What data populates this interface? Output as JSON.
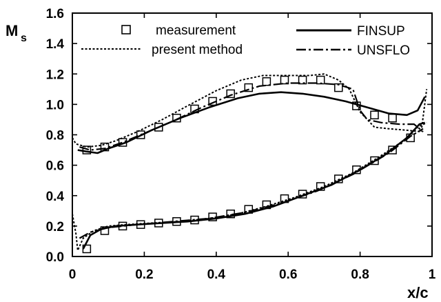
{
  "chart_data": {
    "type": "line",
    "title": "",
    "xlabel": "x/c",
    "ylabel_main": "M",
    "ylabel_sub": "s",
    "xlim": [
      0,
      1
    ],
    "ylim": [
      0,
      1.6
    ],
    "x_ticks": [
      0,
      0.2,
      0.4,
      0.6,
      0.8,
      1
    ],
    "x_tick_labels": [
      "0",
      "0.2",
      "0.4",
      "0.6",
      "0.8",
      "1"
    ],
    "y_ticks": [
      0,
      0.2,
      0.4,
      0.6,
      0.8,
      1.0,
      1.2,
      1.4,
      1.6
    ],
    "y_tick_labels": [
      "0.0",
      "0.2",
      "0.4",
      "0.6",
      "0.8",
      "1.0",
      "1.2",
      "1.4",
      "1.6"
    ],
    "grid": false,
    "legend_position": "top",
    "series": [
      {
        "name": "measurement",
        "style": "markers-square",
        "color": "#000000",
        "x": [
          0.04,
          0.09,
          0.14,
          0.19,
          0.24,
          0.29,
          0.34,
          0.39,
          0.44,
          0.49,
          0.54,
          0.59,
          0.64,
          0.69,
          0.74,
          0.79,
          0.84,
          0.89,
          0.94
        ],
        "y_upper": [
          0.7,
          0.72,
          0.75,
          0.8,
          0.85,
          0.91,
          0.97,
          1.02,
          1.07,
          1.11,
          1.15,
          1.16,
          1.16,
          1.16,
          1.11,
          0.99,
          0.93,
          0.91,
          null
        ],
        "y_lower": [
          0.05,
          0.17,
          0.2,
          0.21,
          0.22,
          0.23,
          0.24,
          0.26,
          0.28,
          0.31,
          0.34,
          0.38,
          0.41,
          0.46,
          0.51,
          0.57,
          0.63,
          0.7,
          0.78
        ]
      },
      {
        "name": "present method",
        "style": "dotted",
        "color": "#000000",
        "x_upper": [
          0.0,
          0.01,
          0.04,
          0.08,
          0.12,
          0.18,
          0.25,
          0.32,
          0.4,
          0.47,
          0.53,
          0.6,
          0.66,
          0.7,
          0.74,
          0.77,
          0.8,
          0.84,
          0.88,
          0.93,
          0.97,
          0.985
        ],
        "y_upper": [
          0.78,
          0.74,
          0.72,
          0.73,
          0.76,
          0.82,
          0.9,
          0.99,
          1.09,
          1.16,
          1.19,
          1.19,
          1.19,
          1.2,
          1.16,
          1.1,
          0.95,
          0.85,
          0.84,
          0.83,
          0.82,
          1.1
        ],
        "x_lower": [
          0.0,
          0.01,
          0.015,
          0.03,
          0.06,
          0.1,
          0.15,
          0.22,
          0.3,
          0.38,
          0.46,
          0.54,
          0.62,
          0.7,
          0.78,
          0.85,
          0.92,
          0.96,
          0.985
        ],
        "y_lower": [
          0.28,
          0.15,
          0.04,
          0.12,
          0.17,
          0.2,
          0.21,
          0.22,
          0.23,
          0.25,
          0.28,
          0.33,
          0.39,
          0.46,
          0.55,
          0.65,
          0.76,
          0.85,
          0.88
        ]
      },
      {
        "name": "FINSUP",
        "style": "solid",
        "color": "#000000",
        "x_upper": [
          0.015,
          0.04,
          0.07,
          0.1,
          0.15,
          0.22,
          0.3,
          0.38,
          0.46,
          0.52,
          0.58,
          0.64,
          0.7,
          0.76,
          0.82,
          0.88,
          0.93,
          0.96,
          0.98
        ],
        "y_upper": [
          0.7,
          0.69,
          0.68,
          0.71,
          0.75,
          0.83,
          0.91,
          0.98,
          1.04,
          1.07,
          1.08,
          1.07,
          1.05,
          1.02,
          0.98,
          0.94,
          0.93,
          0.96,
          1.05
        ],
        "x_lower": [
          0.03,
          0.05,
          0.08,
          0.12,
          0.18,
          0.25,
          0.32,
          0.4,
          0.48,
          0.56,
          0.64,
          0.72,
          0.8,
          0.87,
          0.93,
          0.965,
          0.98
        ],
        "y_lower": [
          0.05,
          0.14,
          0.18,
          0.2,
          0.21,
          0.22,
          0.23,
          0.25,
          0.28,
          0.33,
          0.4,
          0.47,
          0.57,
          0.67,
          0.78,
          0.87,
          0.88
        ]
      },
      {
        "name": "UNSFLO",
        "style": "dash-dot",
        "color": "#000000",
        "x_upper": [
          0.02,
          0.05,
          0.09,
          0.14,
          0.2,
          0.28,
          0.36,
          0.44,
          0.52,
          0.6,
          0.68,
          0.74,
          0.78,
          0.8,
          0.82,
          0.86,
          0.91,
          0.95,
          0.975
        ],
        "y_upper": [
          0.72,
          0.7,
          0.71,
          0.75,
          0.81,
          0.89,
          0.98,
          1.06,
          1.12,
          1.14,
          1.14,
          1.13,
          1.1,
          0.96,
          0.9,
          0.88,
          0.87,
          0.87,
          0.82
        ],
        "x_lower": [
          0.02,
          0.05,
          0.1,
          0.18,
          0.28,
          0.38,
          0.48,
          0.58,
          0.68,
          0.78,
          0.88,
          0.94,
          0.975
        ],
        "y_lower": [
          0.12,
          0.16,
          0.19,
          0.21,
          0.23,
          0.25,
          0.29,
          0.35,
          0.43,
          0.54,
          0.68,
          0.79,
          0.84
        ]
      }
    ]
  }
}
